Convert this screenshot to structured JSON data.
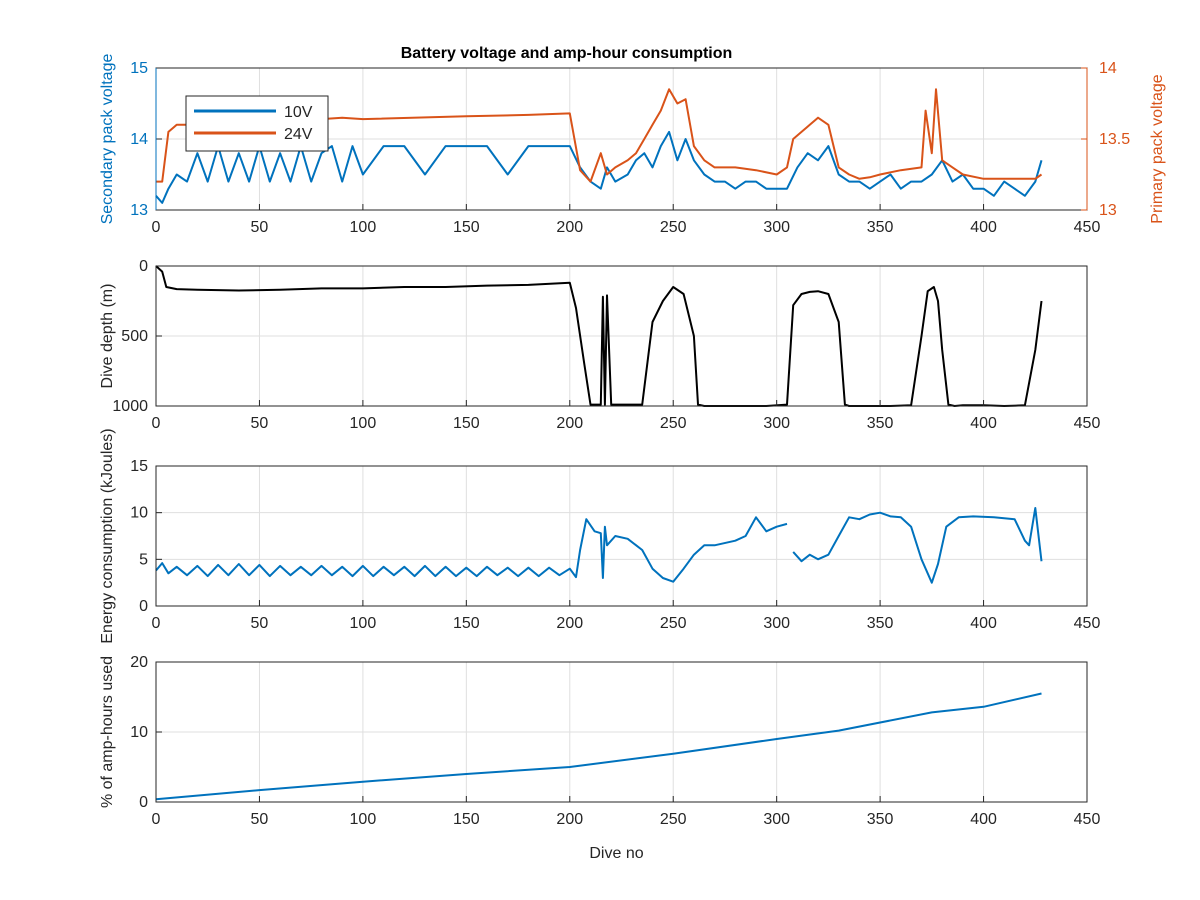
{
  "chart_data": [
    {
      "type": "line",
      "title": "Battery voltage and amp-hour consumption",
      "xlabel": "",
      "ylabel": "Secondary pack voltage",
      "ylabel_right": "Primary pack voltage",
      "xlim": [
        0,
        450
      ],
      "ylim": [
        13,
        15
      ],
      "ylim_right": [
        13,
        14
      ],
      "xticks": [
        "0",
        "50",
        "100",
        "150",
        "200",
        "250",
        "300",
        "350",
        "400",
        "450"
      ],
      "yticks": [
        "13",
        "14",
        "15"
      ],
      "yticks_right": [
        "13",
        "13.5",
        "14"
      ],
      "grid": true,
      "legend": {
        "placement": "top-left",
        "entries": [
          "10V",
          "24V"
        ]
      },
      "series": [
        {
          "name": "10V",
          "axis": "left",
          "color": "#0072BD",
          "x": [
            0,
            3,
            6,
            10,
            15,
            20,
            25,
            30,
            35,
            40,
            45,
            50,
            55,
            60,
            65,
            70,
            75,
            80,
            85,
            90,
            95,
            100,
            110,
            120,
            130,
            140,
            150,
            160,
            170,
            180,
            190,
            200,
            205,
            210,
            215,
            218,
            222,
            228,
            232,
            236,
            240,
            244,
            248,
            252,
            256,
            260,
            265,
            270,
            275,
            280,
            285,
            290,
            295,
            300,
            305,
            310,
            315,
            320,
            325,
            330,
            335,
            340,
            345,
            350,
            355,
            360,
            365,
            370,
            375,
            380,
            385,
            390,
            395,
            400,
            405,
            410,
            415,
            420,
            425,
            428
          ],
          "values": [
            13.2,
            13.1,
            13.3,
            13.5,
            13.4,
            13.8,
            13.4,
            13.9,
            13.4,
            13.8,
            13.4,
            13.9,
            13.4,
            13.8,
            13.4,
            13.9,
            13.4,
            13.8,
            13.9,
            13.4,
            13.9,
            13.5,
            13.9,
            13.9,
            13.5,
            13.9,
            13.9,
            13.9,
            13.5,
            13.9,
            13.9,
            13.9,
            13.6,
            13.4,
            13.3,
            13.6,
            13.4,
            13.5,
            13.7,
            13.8,
            13.6,
            13.9,
            14.1,
            13.7,
            14.0,
            13.7,
            13.5,
            13.4,
            13.4,
            13.3,
            13.4,
            13.4,
            13.3,
            13.3,
            13.3,
            13.6,
            13.8,
            13.7,
            13.9,
            13.5,
            13.4,
            13.4,
            13.3,
            13.4,
            13.5,
            13.3,
            13.4,
            13.4,
            13.5,
            13.7,
            13.4,
            13.5,
            13.3,
            13.3,
            13.2,
            13.4,
            13.3,
            13.2,
            13.4,
            13.7
          ]
        },
        {
          "name": "24V",
          "axis": "right",
          "color": "#D95319",
          "x": [
            0,
            3,
            6,
            10,
            20,
            40,
            60,
            80,
            90,
            100,
            150,
            180,
            200,
            205,
            210,
            215,
            218,
            222,
            228,
            232,
            236,
            240,
            244,
            248,
            252,
            256,
            260,
            265,
            270,
            280,
            290,
            300,
            305,
            308,
            312,
            316,
            320,
            325,
            330,
            335,
            340,
            345,
            350,
            360,
            370,
            372,
            375,
            377,
            380,
            385,
            390,
            400,
            410,
            420,
            425,
            428
          ],
          "values": [
            13.2,
            13.2,
            13.55,
            13.6,
            13.6,
            13.62,
            13.63,
            13.64,
            13.65,
            13.64,
            13.66,
            13.67,
            13.68,
            13.28,
            13.2,
            13.4,
            13.25,
            13.3,
            13.35,
            13.4,
            13.5,
            13.6,
            13.7,
            13.85,
            13.75,
            13.78,
            13.45,
            13.35,
            13.3,
            13.3,
            13.28,
            13.25,
            13.3,
            13.5,
            13.55,
            13.6,
            13.65,
            13.6,
            13.3,
            13.25,
            13.22,
            13.23,
            13.25,
            13.28,
            13.3,
            13.7,
            13.4,
            13.85,
            13.35,
            13.3,
            13.25,
            13.22,
            13.22,
            13.22,
            13.22,
            13.25
          ]
        }
      ]
    },
    {
      "type": "line",
      "title": "",
      "xlabel": "",
      "ylabel": "Dive depth (m)",
      "xlim": [
        0,
        450
      ],
      "ylim": [
        0,
        1000
      ],
      "y_reversed": true,
      "xticks": [
        "0",
        "50",
        "100",
        "150",
        "200",
        "250",
        "300",
        "350",
        "400",
        "450"
      ],
      "yticks": [
        "0",
        "500",
        "1000"
      ],
      "grid": true,
      "series": [
        {
          "color": "#000000",
          "x": [
            0,
            3,
            5,
            10,
            20,
            40,
            60,
            80,
            100,
            120,
            140,
            160,
            180,
            200,
            203,
            207,
            210,
            213,
            215,
            216,
            217,
            218,
            220,
            225,
            235,
            240,
            245,
            250,
            255,
            260,
            262,
            265,
            275,
            285,
            295,
            305,
            308,
            312,
            316,
            320,
            325,
            330,
            333,
            335,
            340,
            355,
            365,
            370,
            373,
            376,
            378,
            380,
            383,
            386,
            390,
            400,
            410,
            420,
            425,
            428
          ],
          "values": [
            0,
            40,
            150,
            165,
            170,
            175,
            170,
            160,
            160,
            150,
            150,
            140,
            135,
            120,
            300,
            700,
            990,
            990,
            990,
            220,
            990,
            210,
            990,
            990,
            990,
            400,
            250,
            150,
            200,
            500,
            990,
            1000,
            1000,
            1000,
            1000,
            990,
            280,
            200,
            185,
            180,
            200,
            400,
            990,
            1000,
            1000,
            1000,
            995,
            500,
            180,
            150,
            250,
            600,
            990,
            1000,
            995,
            995,
            1000,
            995,
            600,
            250
          ]
        }
      ]
    },
    {
      "type": "line",
      "title": "",
      "xlabel": "",
      "ylabel": "Energy consumption (kJoules)",
      "xlim": [
        0,
        450
      ],
      "ylim": [
        0,
        15
      ],
      "xticks": [
        "0",
        "50",
        "100",
        "150",
        "200",
        "250",
        "300",
        "350",
        "400",
        "450"
      ],
      "yticks": [
        "0",
        "5",
        "10",
        "15"
      ],
      "grid": true,
      "series": [
        {
          "color": "#0072BD",
          "segments": [
            {
              "x": [
                0,
                3,
                6,
                10,
                15,
                20,
                25,
                30,
                35,
                40,
                45,
                50,
                55,
                60,
                65,
                70,
                75,
                80,
                85,
                90,
                95,
                100,
                105,
                110,
                115,
                120,
                125,
                130,
                135,
                140,
                145,
                150,
                155,
                160,
                165,
                170,
                175,
                180,
                185,
                190,
                195,
                200,
                203,
                205,
                208,
                212,
                215,
                216,
                217,
                218,
                222,
                228,
                235,
                240,
                245,
                250,
                255,
                260,
                265,
                270,
                280,
                285,
                290,
                295,
                300,
                305
              ],
              "values": [
                3.8,
                4.6,
                3.5,
                4.2,
                3.3,
                4.3,
                3.2,
                4.4,
                3.3,
                4.5,
                3.3,
                4.4,
                3.2,
                4.3,
                3.3,
                4.2,
                3.3,
                4.3,
                3.3,
                4.2,
                3.2,
                4.3,
                3.2,
                4.2,
                3.3,
                4.2,
                3.2,
                4.3,
                3.2,
                4.2,
                3.2,
                4.1,
                3.2,
                4.2,
                3.3,
                4.1,
                3.2,
                4.1,
                3.2,
                4.1,
                3.3,
                4.0,
                3.1,
                6.0,
                9.3,
                8.0,
                7.8,
                3.0,
                8.5,
                6.5,
                7.5,
                7.2,
                6.0,
                4.0,
                3.0,
                2.6,
                4.0,
                5.5,
                6.5,
                6.5,
                7.0,
                7.5,
                9.5,
                8.0,
                8.5,
                8.8
              ]
            },
            {
              "x": [
                308,
                312,
                316,
                320,
                325,
                330,
                335,
                340,
                345,
                350,
                355,
                360,
                365,
                370,
                375,
                378,
                382,
                388,
                395,
                405,
                415,
                420,
                422,
                425,
                428
              ],
              "values": [
                5.8,
                4.8,
                5.5,
                5.0,
                5.5,
                7.5,
                9.5,
                9.3,
                9.8,
                10.0,
                9.6,
                9.5,
                8.5,
                5.0,
                2.5,
                4.5,
                8.5,
                9.5,
                9.6,
                9.5,
                9.3,
                7.0,
                6.5,
                10.5,
                4.8
              ]
            }
          ]
        }
      ]
    },
    {
      "type": "line",
      "title": "",
      "xlabel": "Dive no",
      "ylabel": "% of amp-hours used",
      "xlim": [
        0,
        450
      ],
      "ylim": [
        0,
        20
      ],
      "xticks": [
        "0",
        "50",
        "100",
        "150",
        "200",
        "250",
        "300",
        "350",
        "400",
        "450"
      ],
      "yticks": [
        "0",
        "10",
        "20"
      ],
      "grid": true,
      "series": [
        {
          "color": "#0072BD",
          "x": [
            0,
            50,
            100,
            150,
            200,
            250,
            300,
            330,
            375,
            400,
            428
          ],
          "values": [
            0.4,
            1.7,
            2.9,
            4.0,
            5.0,
            6.9,
            9.0,
            10.2,
            12.8,
            13.6,
            15.5
          ]
        }
      ]
    }
  ]
}
